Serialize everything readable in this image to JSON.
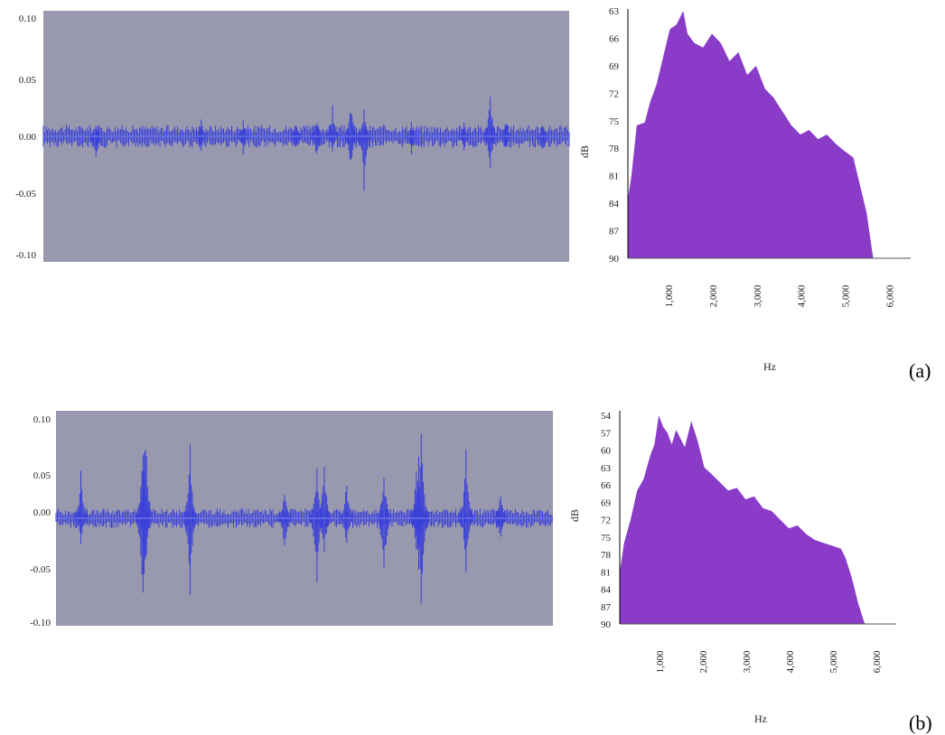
{
  "colors": {
    "waveform_bg": "#9898ae",
    "waveform": "#3a40d8",
    "waveform_light": "#6a72e6",
    "spectrum_fill": "#8a3cc8",
    "axis": "#000000"
  },
  "panels": [
    {
      "label": "(a)"
    },
    {
      "label": "(b)"
    }
  ],
  "chart_data": [
    {
      "type": "line",
      "subtype": "waveform",
      "panel": "(a)",
      "ylim": [
        -0.1,
        0.1
      ],
      "yticks": [
        "0.10",
        "0.05",
        "0.00",
        "-0.05",
        "-0.10"
      ],
      "ytick_values": [
        0.1,
        0.05,
        0.0,
        -0.05,
        -0.1
      ],
      "xlabel": "",
      "ylabel": "",
      "noise_amplitude": 0.006,
      "spikes": [
        {
          "x": 0.1,
          "up": 0.012,
          "down": -0.025
        },
        {
          "x": 0.3,
          "up": 0.014,
          "down": -0.012
        },
        {
          "x": 0.38,
          "up": 0.013,
          "down": -0.015
        },
        {
          "x": 0.48,
          "up": 0.012,
          "down": -0.012
        },
        {
          "x": 0.52,
          "up": 0.015,
          "down": -0.02
        },
        {
          "x": 0.55,
          "up": 0.025,
          "down": -0.012
        },
        {
          "x": 0.585,
          "up": 0.03,
          "down": -0.03
        },
        {
          "x": 0.61,
          "up": 0.022,
          "down": -0.044
        },
        {
          "x": 0.7,
          "up": 0.012,
          "down": -0.015
        },
        {
          "x": 0.8,
          "up": 0.012,
          "down": -0.012
        },
        {
          "x": 0.85,
          "up": 0.038,
          "down": -0.03
        },
        {
          "x": 0.88,
          "up": 0.015,
          "down": -0.012
        },
        {
          "x": 0.95,
          "up": 0.012,
          "down": -0.015
        }
      ]
    },
    {
      "type": "area",
      "subtype": "spectrum",
      "panel": "(a)",
      "ylabel": "dB",
      "xlabel": "Hz",
      "yticks": [
        "63",
        "66",
        "69",
        "72",
        "75",
        "78",
        "81",
        "84",
        "87",
        "90"
      ],
      "ytick_values": [
        63,
        66,
        69,
        72,
        75,
        78,
        81,
        84,
        87,
        90
      ],
      "ylim_top": 63,
      "ylim_bottom": 90,
      "xticks": [
        "1,000",
        "2,000",
        "3,000",
        "4,000",
        "5,000",
        "6,000"
      ],
      "xtick_values": [
        1000,
        2000,
        3000,
        4000,
        5000,
        6000
      ],
      "xlim": [
        0,
        6500
      ],
      "x": [
        0,
        80,
        200,
        380,
        500,
        650,
        800,
        950,
        1100,
        1250,
        1350,
        1500,
        1700,
        1900,
        2100,
        2300,
        2500,
        2700,
        2900,
        3100,
        3300,
        3500,
        3700,
        3900,
        4100,
        4300,
        4500,
        4700,
        4900,
        5100,
        5200,
        5400,
        5550
      ],
      "y": [
        83.5,
        81,
        75.5,
        75.2,
        73,
        71,
        68,
        65,
        64.5,
        63,
        65.5,
        66.5,
        67,
        65.5,
        66.5,
        68.5,
        67.5,
        70,
        69,
        71.5,
        72.5,
        74,
        75.5,
        76.5,
        76,
        77,
        76.5,
        77.5,
        78.3,
        79,
        81,
        85,
        90
      ]
    },
    {
      "type": "line",
      "subtype": "waveform",
      "panel": "(b)",
      "ylim": [
        -0.1,
        0.1
      ],
      "yticks": [
        "0.10",
        "0.05",
        "0.00",
        "-0.05",
        "-0.10"
      ],
      "ytick_values": [
        0.1,
        0.05,
        0.0,
        -0.05,
        -0.1
      ],
      "xlabel": "",
      "ylabel": "",
      "noise_amplitude": 0.006,
      "spikes": [
        {
          "x": 0.05,
          "up": 0.047,
          "down": -0.025
        },
        {
          "x": 0.175,
          "up": 0.085,
          "down": -0.1
        },
        {
          "x": 0.18,
          "up": 0.1,
          "down": -0.06
        },
        {
          "x": 0.27,
          "up": 0.072,
          "down": -0.075
        },
        {
          "x": 0.46,
          "up": 0.03,
          "down": -0.035
        },
        {
          "x": 0.525,
          "up": 0.055,
          "down": -0.07
        },
        {
          "x": 0.54,
          "up": 0.062,
          "down": -0.04
        },
        {
          "x": 0.585,
          "up": 0.04,
          "down": -0.03
        },
        {
          "x": 0.66,
          "up": 0.053,
          "down": -0.065
        },
        {
          "x": 0.725,
          "up": 0.045,
          "down": -0.03
        },
        {
          "x": 0.73,
          "up": 0.06,
          "down": -0.05
        },
        {
          "x": 0.735,
          "up": 0.1,
          "down": -0.1
        },
        {
          "x": 0.825,
          "up": 0.07,
          "down": -0.055
        },
        {
          "x": 0.895,
          "up": 0.03,
          "down": -0.025
        }
      ]
    },
    {
      "type": "area",
      "subtype": "spectrum",
      "panel": "(b)",
      "ylabel": "dB",
      "xlabel": "Hz",
      "yticks": [
        "54",
        "57",
        "60",
        "63",
        "66",
        "69",
        "72",
        "75",
        "78",
        "81",
        "84",
        "87",
        "90"
      ],
      "ytick_values": [
        54,
        57,
        60,
        63,
        66,
        69,
        72,
        75,
        78,
        81,
        84,
        87,
        90
      ],
      "ylim_top": 54,
      "ylim_bottom": 90,
      "xticks": [
        "1,000",
        "2,000",
        "3,000",
        "4,000",
        "5,000",
        "6,000"
      ],
      "xtick_values": [
        1000,
        2000,
        3000,
        4000,
        5000,
        6000
      ],
      "xlim": [
        0,
        6500
      ],
      "x": [
        0,
        100,
        250,
        400,
        550,
        700,
        800,
        900,
        1000,
        1100,
        1200,
        1300,
        1400,
        1500,
        1650,
        1800,
        1950,
        2100,
        2300,
        2500,
        2700,
        2900,
        3100,
        3300,
        3500,
        3700,
        3900,
        4100,
        4300,
        4500,
        4700,
        4900,
        5100,
        5200,
        5350,
        5500,
        5650
      ],
      "y": [
        81,
        76,
        72,
        67,
        65,
        61,
        59,
        54,
        56,
        57,
        59,
        56.5,
        58,
        59.5,
        55,
        58.5,
        63,
        64,
        65.5,
        67,
        66.5,
        68.5,
        68,
        70,
        70.5,
        72,
        73.5,
        73,
        74.5,
        75.5,
        76,
        76.5,
        77,
        78.5,
        82,
        86.5,
        90
      ]
    }
  ]
}
